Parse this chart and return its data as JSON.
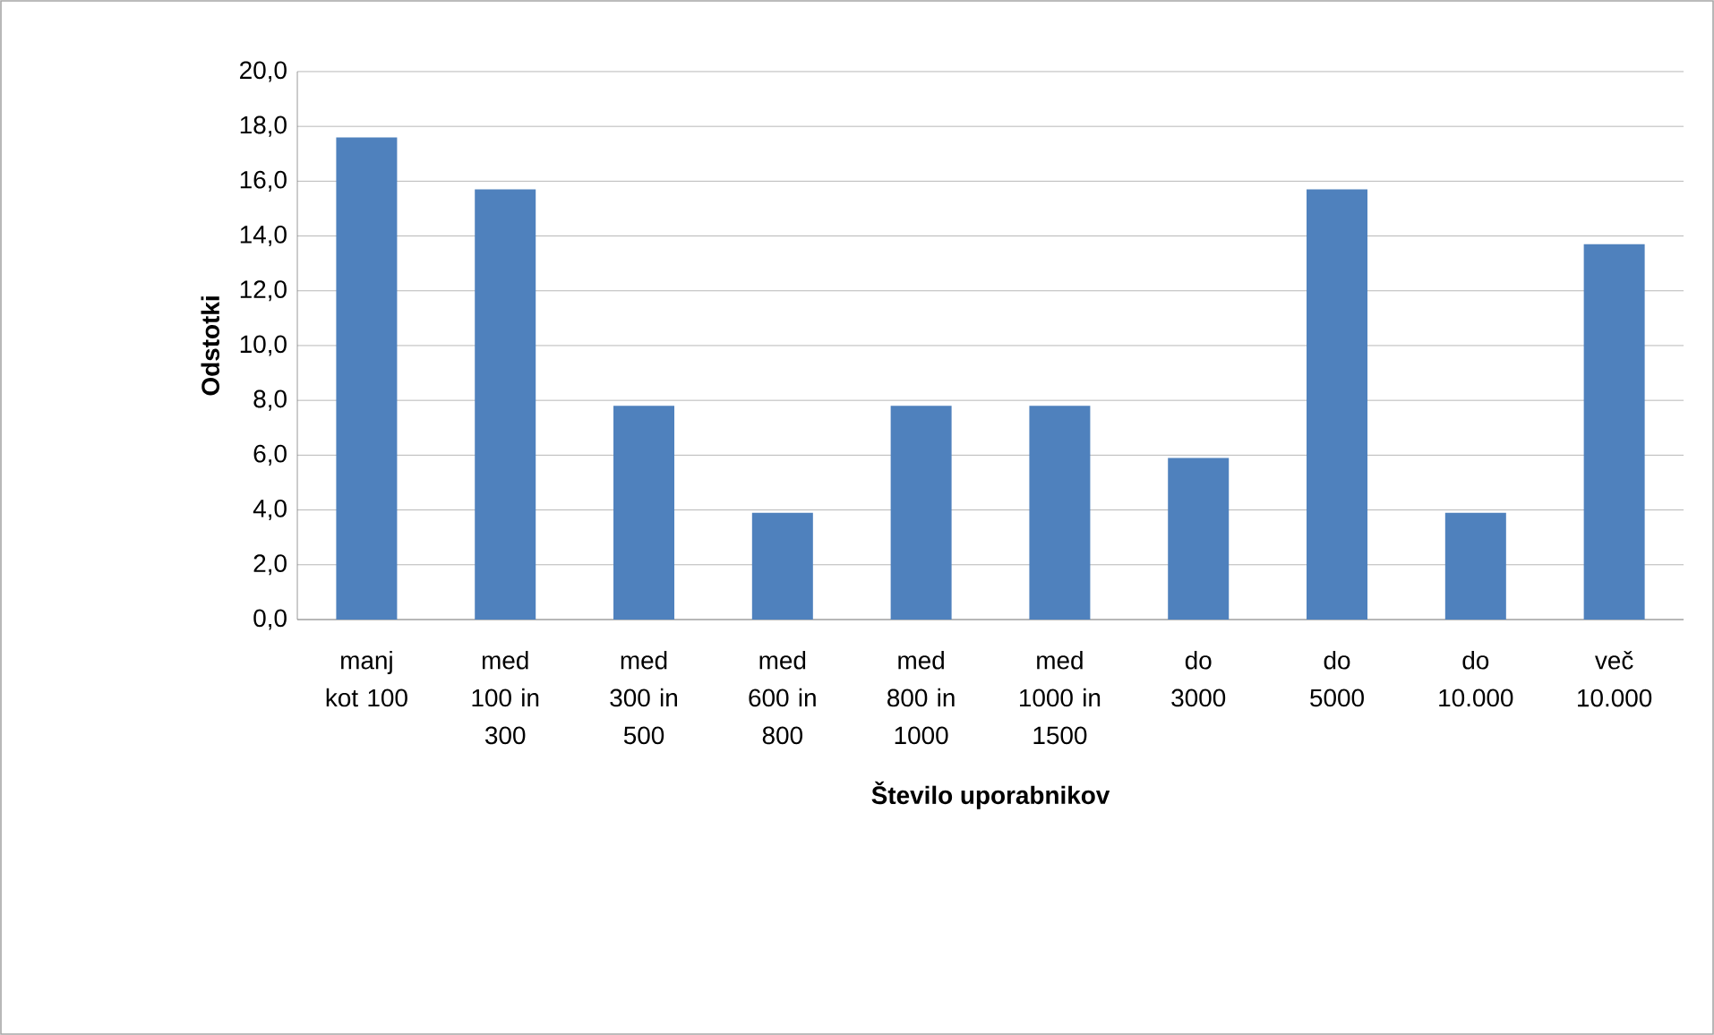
{
  "chart_data": {
    "type": "bar",
    "xlabel": "Število uporabnikov",
    "ylabel": "Odstotki",
    "categories": [
      "manj kot 100",
      "med 100 in 300",
      "med 300 in 500",
      "med 600 in 800",
      "med 800 in 1000",
      "med 1000 in 1500",
      "do 3000",
      "do 5000",
      "do 10.000",
      "več 10.000"
    ],
    "values": [
      17.6,
      15.7,
      7.8,
      3.9,
      7.8,
      7.8,
      5.9,
      15.7,
      3.9,
      13.7
    ],
    "color": "#4f81bd",
    "ylim": [
      0,
      20
    ],
    "yticks": [
      {
        "value": 0,
        "label": "0,0"
      },
      {
        "value": 2,
        "label": "2,0"
      },
      {
        "value": 4,
        "label": "4,0"
      },
      {
        "value": 6,
        "label": "6,0"
      },
      {
        "value": 8,
        "label": "8,0"
      },
      {
        "value": 10,
        "label": "10,0"
      },
      {
        "value": 12,
        "label": "12,0"
      },
      {
        "value": 14,
        "label": "14,0"
      },
      {
        "value": 16,
        "label": "16,0"
      },
      {
        "value": 18,
        "label": "18,0"
      },
      {
        "value": 20,
        "label": "20,0"
      }
    ],
    "grid": "y"
  }
}
